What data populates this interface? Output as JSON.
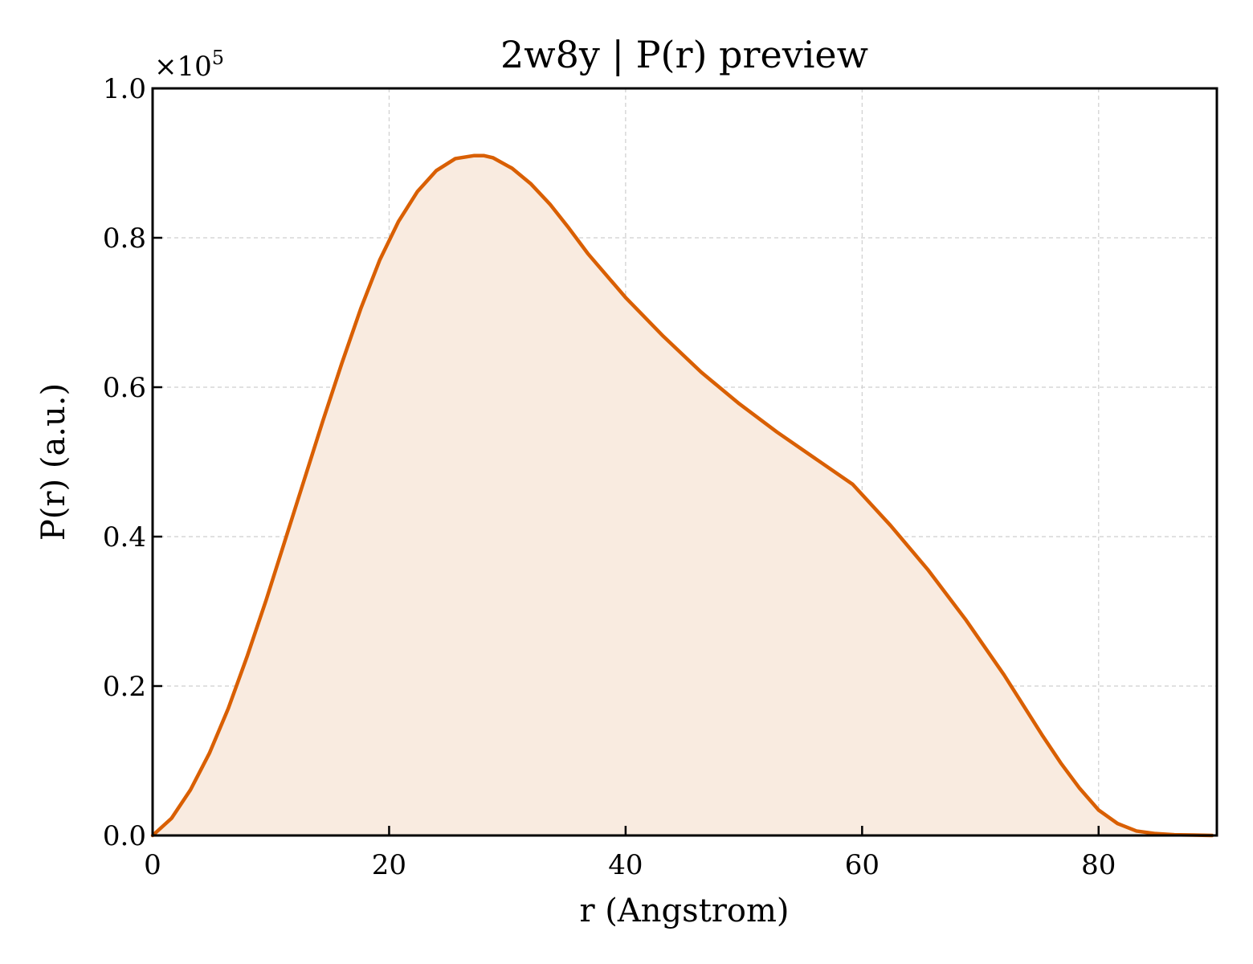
{
  "chart_data": {
    "type": "area",
    "title": "2w8y | P(r) preview",
    "xlabel": "r (Angstrom)",
    "ylabel": "P(r) (a.u.)",
    "y_multiplier_base": "×10",
    "y_multiplier_exp": "5",
    "xlim": [
      0,
      90
    ],
    "ylim": [
      0,
      1.0
    ],
    "xticks": [
      0,
      20,
      40,
      60,
      80
    ],
    "xtick_labels": [
      "0",
      "20",
      "40",
      "60",
      "80"
    ],
    "yticks": [
      0.0,
      0.2,
      0.4,
      0.6,
      0.8,
      1.0
    ],
    "ytick_labels": [
      "0.0",
      "0.2",
      "0.4",
      "0.6",
      "0.8",
      "1.0"
    ],
    "grid": true,
    "line_color": "#d95f02",
    "fill_color": "#f9ebe0",
    "series": [
      {
        "x": [
          0,
          1.6,
          3.2,
          4.8,
          6.4,
          8.0,
          9.6,
          11.2,
          12.8,
          14.4,
          16.0,
          17.6,
          19.2,
          20.8,
          22.4,
          24.0,
          25.6,
          27.2,
          28.0,
          28.8,
          30.4,
          32.0,
          33.6,
          35.2,
          36.8,
          40.0,
          43.2,
          46.4,
          49.6,
          52.8,
          56.0,
          59.2,
          62.4,
          65.6,
          68.8,
          72.0,
          75.2,
          76.8,
          78.4,
          80.0,
          81.6,
          83.2,
          84.8,
          86.4,
          88.0,
          89.6
        ],
        "y": [
          0.0,
          0.023,
          0.061,
          0.11,
          0.17,
          0.24,
          0.315,
          0.395,
          0.475,
          0.555,
          0.632,
          0.705,
          0.77,
          0.822,
          0.862,
          0.89,
          0.906,
          0.91,
          0.91,
          0.907,
          0.893,
          0.872,
          0.845,
          0.813,
          0.779,
          0.72,
          0.668,
          0.62,
          0.578,
          0.54,
          0.505,
          0.47,
          0.415,
          0.355,
          0.288,
          0.215,
          0.135,
          0.097,
          0.063,
          0.034,
          0.016,
          0.006,
          0.0025,
          0.001,
          0.0005,
          0.0
        ]
      }
    ]
  }
}
